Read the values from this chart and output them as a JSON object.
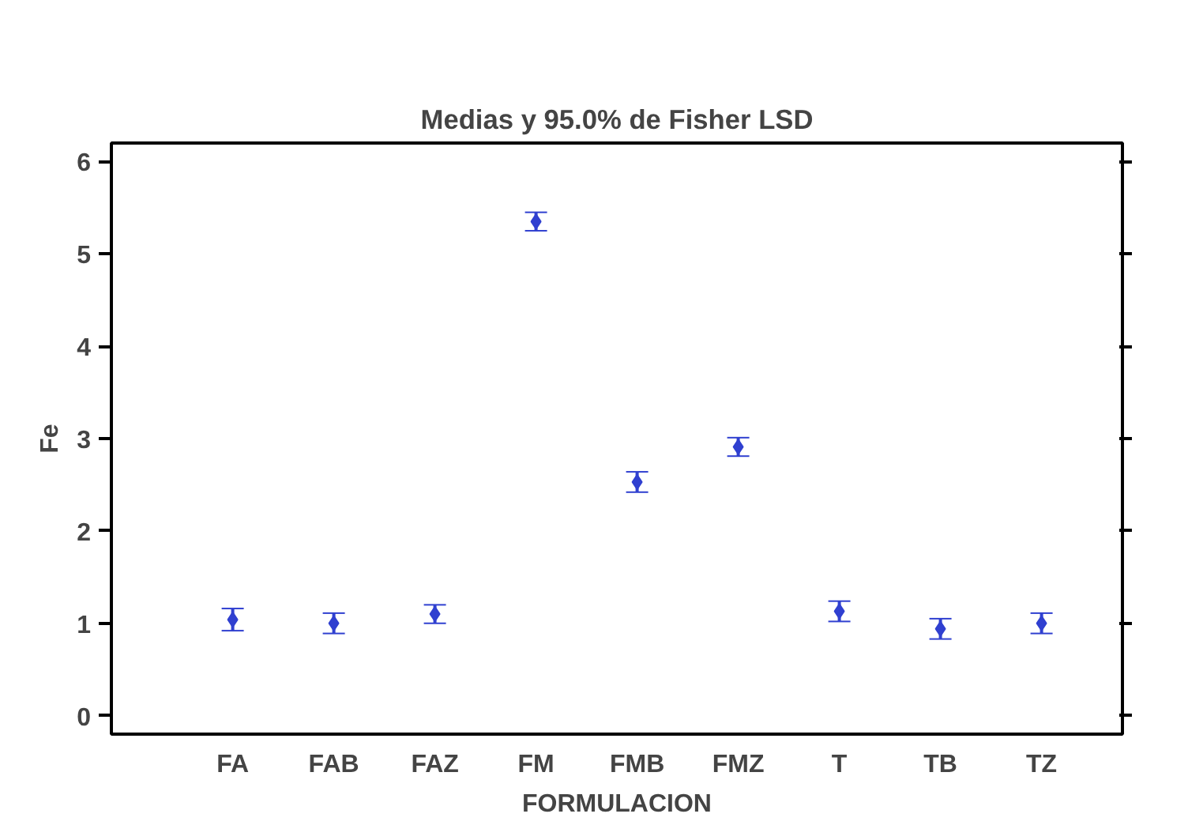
{
  "chart_data": {
    "type": "scatter",
    "title": "Medias y 95.0% de Fisher LSD",
    "xlabel": "FORMULACION",
    "ylabel": "Fe",
    "categories": [
      "FA",
      "FAB",
      "FAZ",
      "FM",
      "FMB",
      "FMZ",
      "T",
      "TB",
      "TZ"
    ],
    "series": [
      {
        "color": "#3040d0",
        "values": [
          1.04,
          1.0,
          1.1,
          5.35,
          2.53,
          2.91,
          1.13,
          0.94,
          1.0
        ],
        "errors": [
          0.12,
          0.11,
          0.1,
          0.1,
          0.11,
          0.1,
          0.11,
          0.11,
          0.11
        ]
      }
    ],
    "ylim": [
      -0.2,
      6.2
    ],
    "yticks": [
      0,
      1,
      2,
      3,
      4,
      5,
      6
    ],
    "grid": false,
    "marker": "diamond"
  }
}
